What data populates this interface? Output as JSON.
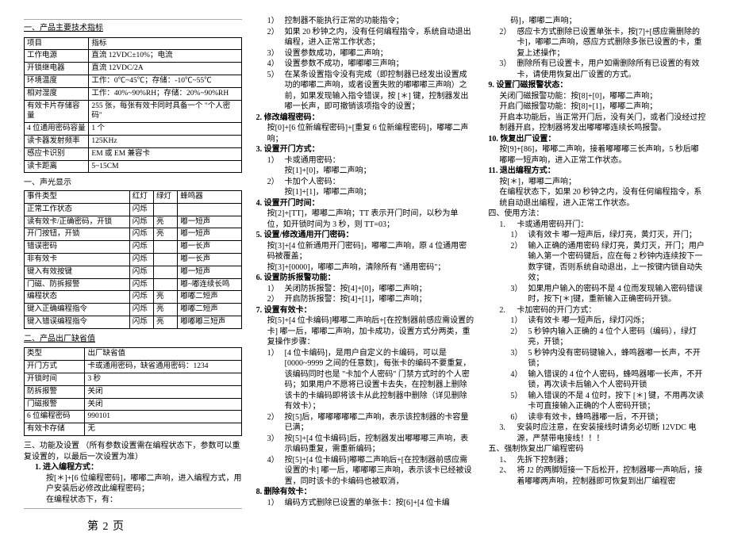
{
  "col1": {
    "title1": "一、产品主要技术指标",
    "specTable": {
      "rows": [
        [
          "项目",
          "指标"
        ],
        [
          "工作电源",
          "直流 12VDC±10%；电流"
        ],
        [
          "开锁继电器",
          "直流 12VDC/2A"
        ],
        [
          "环境温度",
          "工作：0℃~45℃；存储：-10℃~55℃"
        ],
        [
          "相对湿度",
          "工作：40%~90%RH；存储：20%~90%RH"
        ],
        [
          "有效卡片存储容量",
          "255 张，每张有效卡同时具备一个 \"个人密码\""
        ],
        [
          "4 位通用密码容量",
          "1 个"
        ],
        [
          "读卡器发射频率",
          "125KHz"
        ],
        [
          "感应卡识别",
          "EM 或 EM 兼容卡"
        ],
        [
          "读卡距离",
          "5~15CM"
        ]
      ]
    },
    "soundLightTitle": "一、声光显示",
    "eventTable": {
      "header": [
        "事件类型",
        "红灯",
        "绿灯",
        "蜂鸣器"
      ],
      "rows": [
        [
          "正常工作状态",
          "闪烁",
          "",
          ""
        ],
        [
          "读有效卡/正确密码，开锁",
          "闪烁",
          "亮",
          "嘟一短声"
        ],
        [
          "开门按钮，开锁",
          "闪烁",
          "亮",
          "嘟一短声"
        ],
        [
          "错误密码",
          "闪烁",
          "",
          "嘟一长声"
        ],
        [
          "非有效卡",
          "闪烁",
          "",
          "嘟一长声"
        ],
        [
          "键入有效按键",
          "闪烁",
          "",
          "嘟一短声"
        ],
        [
          "门磁、防拆报警",
          "闪烁",
          "",
          "嘟~嘟连续长鸣"
        ],
        [
          "编程状态",
          "闪烁",
          "亮",
          "嘟嘟二短声"
        ],
        [
          "键入正确编程指令",
          "闪烁",
          "亮",
          "嘟嘟二短声"
        ],
        [
          "键入错误编程指令",
          "闪烁",
          "亮",
          "嘟嘟嘟三短声"
        ]
      ]
    },
    "title2": "二、产品出厂缺省值",
    "defaultTable": {
      "header": [
        "类型",
        "出厂缺省值"
      ],
      "rows": [
        [
          "开门方式",
          "卡或通用密码，缺省通用密码：1234"
        ],
        [
          "开锁时间",
          "3 秒"
        ],
        [
          "防拆报警",
          "关闭"
        ],
        [
          "门磁报警",
          "关闭"
        ],
        [
          "6 位编程密码",
          "990101"
        ],
        [
          "有效卡存储",
          "无"
        ]
      ]
    },
    "title3": "三、功能及设置   （所有参数设置需在编程状态下，参数可以重复设置的，以最后一次设置为准）",
    "item1_title": "1.   进入编程方式：",
    "item1_l1": "按[＊]+[6 位编程密码]，嘟嘟二声响，进入编程方式，用户安装后必修改此编程密码；",
    "item1_l2": "在编程状态下，有：",
    "pageFoot": "第  2  页"
  },
  "col2": {
    "s1_items": [
      "控制器不能执行正常的功能指令；",
      "如果 20 秒钟之内，没有任何编程指令，系统自动退出编程，进入正常工作状态；",
      "设置参数成功，嘟嘟二声响；",
      "设置参数不成功，嘟嘟嘟三声响；",
      "在某条设置指令没有完成（即控制器已经发出设置成功的嘟嘟二声响，或者设置失败的嘟嘟嘟三声响）之前，如果发现输入指令错误，按 [＊] 键，控制器发出嘟一长声，即可撤销该项指令的设置；"
    ],
    "s2_title": "2.   修改编程密码：",
    "s2_body": "按[0]+[6 位新编程密码]+[重复 6 位新编程密码]，嘟嘟二声响；",
    "s3_title": "3.   设置开门方式：",
    "s3_items": [
      "卡或通用密码：",
      "按[1]+[0]，嘟嘟二声响；",
      "卡加个人密码：",
      "按[1]+[1]，嘟嘟二声响；"
    ],
    "s4_title": "4.   设置开门时间：",
    "s4_body": "按[2]+[TT]，嘟嘟二声响；TT 表示开门时间，以秒为单位，如开锁时间为 3 秒，则 TT=03；",
    "s5_title": "5.   设置/修改通用开门密码：",
    "s5_l1": "按[3]+[4 位新通用开门密码]，嘟嘟二声响，原 4 位通用密码被覆盖；",
    "s5_l2": "按[3]+[0000]，嘟嘟二声响，清除所有 \"通用密码\"；",
    "s6_title": "6.   设置防拆报警功能：",
    "s6_items": [
      "关闭防拆报警：按[4]+[0]，嘟嘟二声响；",
      "开启防拆报警：按[4]+[1]，嘟嘟二声响；"
    ],
    "s7_title": "7.   设置有效卡：",
    "s7_intro": "按[5]+[4 位卡编码]嘟嘟二声响后+[在控制器前感应需设置的卡] 嘟一后，嘟嘟二声响，加卡成功，设置方式分两类，重复操作步骤：",
    "s7_i1_title": "[4 位卡编码]，是用户自定义的卡编码，可以是 [0000~9999 之间的任意数]，每张卡的编码不要重复，该编码同时也是 \"卡加个人密码\" 门禁方式时的个人密码；如果用户不愿将已设置卡去失，在控制器上删除该卡的卡编码即将该卡从此控制器中删除（详见删除有效卡）；",
    "s7_i2": "按[5]后，嘟嘟嘟嘟嘟二声响，表示该控制器的卡容量已满；",
    "s7_i3": "按[5]+[4 位卡编码]后，控制器发出嘟嘟嘟三声响，表示编码重复，需重新编码；",
    "s7_i4": "按[5]+[4 位卡编码]嘟嘟二声响后+[在控制器前感应需设置的卡] 嘟一后，嘟嘟嘟三声响，表示该卡已经被设置，同时该卡的卡编码也被取消，",
    "s8_title": "8.   删除有效卡：",
    "s8_i1": "编码方式删除已设置的单张卡：按[6]+[4 位卡编"
  },
  "col3": {
    "top1": "码]，嘟嘟二声响；",
    "top2": "感应卡方式删除已设置单张卡，按[7]+[感应需删除的卡]，嘟嘟二声响，感应方式删除多张已设置的卡，重复上述操作；",
    "top3": "删除所有已设置卡，用户如需删除所有已设置的有效卡，请使用恢复出厂设置的方式。",
    "s9_title": "9.   设置门磁报警状态：",
    "s9_l1": "关闭门磁报警功能：按[8]+[0]，嘟嘟二声响；",
    "s9_l2": "开启门磁报警功能：按[8]+[1]，嘟嘟二声响；",
    "s9_l3": "开启本功能后，当正常开门后，没有关门，或者门没经过控制器开启，控制器将发出嘟嘟嘟连续长鸣报警。",
    "s10_title": "10.  恢复出厂设置：",
    "s10_body": "按[9]+[86]，嘟嘟二声响，接着嘟嘟嘟三长声响，5 秒后嘟嘟嘟一短声响，进入正常工作状态。",
    "s11_title": "11.  退出编程方式：",
    "s11_l1": "按[＊]，嘟嘟二声响；",
    "s11_l2": "在编程状态下，如果 20 秒钟之内，没有任何编程指令，系统自动退出编程，进入正常工作状态。",
    "usage_title": "四、使用方法：",
    "u1_title": "卡或通用密码开门：",
    "u1_items": [
      "读有效卡 嘟一短声后，绿灯亮，黄灯灭，开门；",
      "输入正确的通用密码  绿灯亮，黄灯灭，开门；用户输入第一个密码键后，应在每 2 秒钟内连续按下一数字键，否则系统自动退出，上一按键内锁自动失效；",
      "如果用户输入的密码不是 4 位而发现输入密码错误时，按下[＊]键，重新输入正确密码开锁。"
    ],
    "u2_title": "卡加密码的开门方式：",
    "u2_items": [
      "读有效卡 嘟一短声后，绿灯闪烁；",
      "5 秒钟内输入正确的 4 位个人密码（编码），绿灯亮，开锁；",
      "5 秒钟内没有密码键输入，蜂鸣器嘟一长声，不开锁；",
      "输入错误的 4 位个人密码，蜂鸣器嘟一长声，不开锁，再次读卡后输入个人密码开锁",
      "输入错误的不是 4 位时，按下 [＊] 键，不用再次读卡可直接输入正确的个人密码开锁；",
      "读非有效卡，蜂鸣器嘟一后，不开锁；"
    ],
    "u3": "安装时应注意，在安装接线时请务必切断 12VDC 电源，严禁带电接线！！！",
    "reset_title": "五、强制恢复出厂编程密码",
    "r1": "先拆下控制器；",
    "r2": "将 J2 的两脚短接一下后松开，控制器嘟一声响后，接着嘟嘟两声响，控制器即可恢复到出厂编程密"
  }
}
